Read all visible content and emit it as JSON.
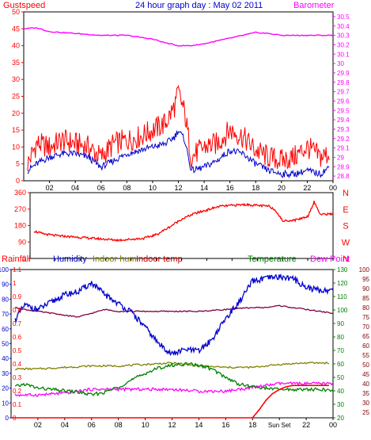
{
  "window": {
    "title": "24 hour graph day : May 02 2011"
  },
  "chart_data": [
    {
      "type": "line",
      "title": "24 hour graph day : May 02 2011",
      "series_labels": {
        "gust": "Gustspeed",
        "pressure": "Barometer"
      },
      "colors": {
        "gust": "#ff0000",
        "wind": "#0000cc",
        "pressure": "#ff00ff"
      },
      "x_ticks": [
        "02",
        "04",
        "06",
        "08",
        "10",
        "12",
        "14",
        "16",
        "18",
        "20",
        "22",
        "00"
      ],
      "x_hours": [
        2,
        4,
        6,
        8,
        10,
        12,
        14,
        16,
        18,
        20,
        22,
        24
      ],
      "y_left_ticks": [
        50,
        45,
        40,
        35,
        30,
        25,
        20,
        15,
        10,
        5,
        0
      ],
      "y_right_ticks": [
        "30.5",
        "30.4",
        "30.3",
        "30.2",
        "30.1",
        "30",
        "29.9",
        "29.8",
        "29.7",
        "29.6",
        "29.5",
        "29.4",
        "29.3",
        "29.2",
        "29.1",
        "29",
        "28.9",
        "28.8"
      ],
      "ylim_left": [
        0,
        50
      ],
      "ylim_right": [
        28.75,
        30.55
      ],
      "gust": {
        "hours": [
          0.3,
          1,
          2,
          3,
          4,
          5,
          6,
          7,
          8,
          9,
          10,
          11,
          11.7,
          12,
          12.5,
          13,
          14,
          15,
          16,
          17,
          18,
          19,
          20,
          21,
          22,
          23,
          23.7
        ],
        "values": [
          5,
          11,
          10,
          12,
          11,
          10,
          7,
          11,
          12,
          13,
          15,
          17,
          22,
          26,
          20,
          7,
          10,
          11,
          15,
          13,
          9,
          7,
          6,
          7,
          10,
          7,
          8
        ]
      },
      "wind": {
        "hours": [
          0.3,
          1,
          2,
          3,
          4,
          5,
          6,
          7,
          8,
          9,
          10,
          11,
          11.7,
          12,
          12.5,
          13,
          14,
          15,
          16,
          17,
          18,
          19,
          20,
          21,
          22,
          23,
          23.7
        ],
        "values": [
          3,
          5,
          7,
          8,
          8,
          7,
          4,
          6,
          8,
          9,
          10,
          11,
          13,
          15,
          12,
          3,
          4,
          6,
          9,
          8,
          5,
          3,
          2,
          2,
          3,
          2,
          4
        ]
      },
      "pressure": {
        "hours": [
          0,
          1,
          2,
          4,
          6,
          8,
          10,
          11,
          12,
          13,
          14,
          16,
          18,
          19,
          20,
          22,
          23,
          24
        ],
        "values": [
          30.37,
          30.38,
          30.34,
          30.32,
          30.3,
          30.3,
          30.26,
          30.22,
          30.19,
          30.19,
          30.21,
          30.27,
          30.33,
          30.32,
          30.3,
          30.3,
          30.3,
          30.3
        ]
      }
    },
    {
      "type": "line",
      "y_ticks": [
        360,
        270,
        180,
        90,
        0
      ],
      "compass": [
        "N",
        "W",
        "S",
        "E",
        "N"
      ],
      "ylim": [
        0,
        360
      ],
      "x_ticks": [
        "02",
        "04",
        "06",
        "08",
        "10",
        "12",
        "14",
        "16",
        "18",
        "20",
        "22",
        "00"
      ],
      "colors": {
        "direction": "#ff0000"
      },
      "direction": {
        "hours": [
          0.3,
          1,
          2,
          3,
          4,
          5,
          6,
          7,
          8,
          9,
          10,
          11,
          12,
          13,
          14,
          15,
          16,
          17,
          18,
          19,
          19.5,
          20,
          21,
          22,
          22.5,
          23,
          24
        ],
        "values": [
          150,
          135,
          125,
          120,
          115,
          110,
          105,
          100,
          105,
          110,
          130,
          170,
          215,
          245,
          265,
          285,
          290,
          295,
          290,
          285,
          260,
          205,
          210,
          230,
          310,
          240,
          245
        ]
      }
    },
    {
      "type": "line",
      "labels": {
        "rain": "Rainfall",
        "hum": "Humidity",
        "inhum": "Indoor hum",
        "intemp": "Indoor temp",
        "temp": "Temperature",
        "dew": "Dew Point"
      },
      "colors": {
        "rain": "#ff0000",
        "hum": "#0000cc",
        "inhum": "#808000",
        "intemp": "#800040",
        "temp": "#008000",
        "dew": "#ff00ff"
      },
      "x_ticks": [
        "02",
        "04",
        "06",
        "08",
        "10",
        "12",
        "14",
        "16",
        "18",
        "Sun Set",
        "22",
        "00"
      ],
      "axis_hum": {
        "ticks": [
          100,
          90,
          80,
          70,
          60,
          50,
          40,
          30,
          20,
          10,
          0
        ],
        "ylim": [
          0,
          100
        ]
      },
      "axis_rain": {
        "ticks": [
          "1.1",
          "1",
          "0.9",
          "0.8",
          "0.7",
          "0.6",
          "0.5",
          "0.4",
          "0.3",
          "0.2",
          "0.1",
          "0"
        ],
        "ylim": [
          0,
          1.1
        ]
      },
      "axis_temp": {
        "ticks": [
          130,
          120,
          110,
          100,
          90,
          80,
          70,
          60,
          50,
          40,
          30,
          20
        ],
        "ylim": [
          20,
          130
        ]
      },
      "axis_dew": {
        "ticks": [
          100,
          95,
          90,
          85,
          80,
          75,
          70,
          65,
          60,
          55,
          50,
          45,
          40,
          35,
          30,
          25
        ],
        "ylim": [
          22,
          100
        ]
      },
      "rain": {
        "hours": [
          0,
          18,
          18.5,
          19,
          19.5,
          20,
          20.5,
          21,
          22,
          23,
          23.7
        ],
        "values": [
          0,
          0,
          0.06,
          0.13,
          0.18,
          0.21,
          0.23,
          0.24,
          0.24,
          0.24,
          0.24
        ]
      },
      "hum": {
        "hours": [
          0.3,
          1,
          2,
          3,
          4,
          5,
          6,
          7,
          8,
          9,
          10,
          11,
          12,
          13,
          14,
          15,
          16,
          17,
          18,
          19,
          20,
          21,
          22,
          23,
          24
        ],
        "values": [
          66,
          76,
          73,
          78,
          83,
          85,
          91,
          83,
          77,
          71,
          61,
          50,
          43,
          46,
          45,
          53,
          67,
          78,
          92,
          94,
          95,
          94,
          88,
          86,
          86
        ]
      },
      "inhum": {
        "hours": [
          0.3,
          2,
          4,
          6,
          8,
          10,
          12,
          14,
          16,
          18,
          20,
          22,
          23.7
        ],
        "values": [
          33,
          33,
          34,
          35,
          35,
          36,
          37,
          35,
          34,
          34,
          36,
          37,
          37
        ]
      },
      "intemp": {
        "hours": [
          0.3,
          1,
          2,
          3,
          4,
          5,
          6,
          7,
          8,
          10,
          12,
          14,
          16,
          18,
          19,
          20,
          21,
          22,
          23,
          24
        ],
        "values": [
          80,
          79,
          78,
          77,
          76,
          75,
          77,
          79,
          78,
          78,
          78,
          78,
          79,
          80,
          80,
          81,
          80,
          79,
          78,
          77
        ]
      },
      "temp": {
        "hours": [
          0.3,
          1,
          2,
          3,
          4,
          5,
          6,
          7,
          8,
          9,
          10,
          11,
          12,
          13,
          14,
          15,
          16,
          17,
          18,
          19,
          20,
          21,
          22,
          23,
          24
        ],
        "values": [
          43,
          45,
          42,
          41,
          40,
          39,
          37,
          39,
          43,
          48,
          53,
          57,
          59,
          60,
          59,
          56,
          50,
          45,
          43,
          42,
          41,
          41,
          41,
          41,
          40
        ]
      },
      "dew": {
        "hours": [
          0.3,
          2,
          4,
          5,
          6,
          7,
          8,
          10,
          12,
          14,
          16,
          18,
          19,
          20,
          21,
          22,
          23,
          24
        ],
        "values": [
          34,
          34,
          35,
          36,
          37,
          37,
          37,
          37,
          37,
          36,
          36,
          38,
          39,
          40,
          40,
          40,
          40,
          40
        ]
      }
    }
  ]
}
